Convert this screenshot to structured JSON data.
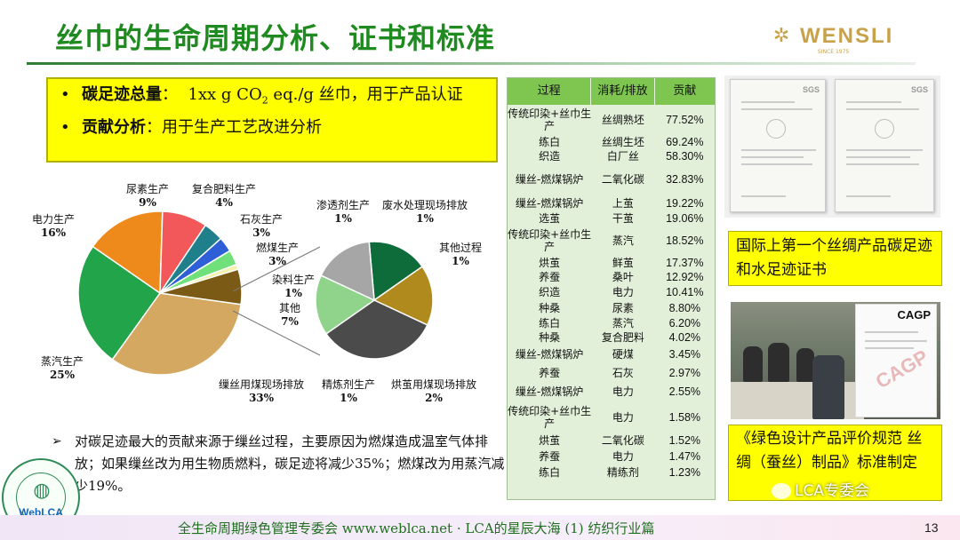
{
  "title": "丝巾的生命周期分析、证书和标准",
  "logo": {
    "name": "WENSLI",
    "sub": "SINCE 1975"
  },
  "summary": [
    {
      "bullet": "•",
      "label": "碳足迹总量",
      "sep": "：",
      "value_pre": "1xx g CO",
      "value_sub": "2",
      "value_post": " eq./g 丝巾，用于产品认证"
    },
    {
      "bullet": "•",
      "label": "贡献分析",
      "sep": "：",
      "value_pre": "用于生产工艺改进分析",
      "value_sub": "",
      "value_post": ""
    }
  ],
  "chart_data": [
    {
      "type": "pie",
      "slices": [
        {
          "name": "缫丝用煤现场排放",
          "value": 33,
          "label": "33%",
          "color": "#d4a860"
        },
        {
          "name": "蒸汽生产",
          "value": 25,
          "label": "25%",
          "color": "#22a54a"
        },
        {
          "name": "电力生产",
          "value": 16,
          "label": "16%",
          "color": "#ee8a1c"
        },
        {
          "name": "尿素生产",
          "value": 9,
          "label": "9%",
          "color": "#f2585a"
        },
        {
          "name": "复合肥料生产",
          "value": 4,
          "label": "4%",
          "color": "#1f7f8a"
        },
        {
          "name": "石灰生产",
          "value": 3,
          "label": "3%",
          "color": "#2f5fd6"
        },
        {
          "name": "燃煤生产",
          "value": 3,
          "label": "3%",
          "color": "#6fe07a"
        },
        {
          "name": "染料生产",
          "value": 1,
          "label": "1%",
          "color": "#f2f2a8"
        },
        {
          "name": "其他",
          "value": 7,
          "label": "7%",
          "color": "#7a5a14"
        }
      ]
    },
    {
      "type": "pie",
      "slices": [
        {
          "name": "废水处理现场排放",
          "value": 1,
          "label": "1%",
          "color": "#0e6b3a"
        },
        {
          "name": "其他过程",
          "value": 1,
          "label": "1%",
          "color": "#b08a1c"
        },
        {
          "name": "烘茧用煤现场排放",
          "value": 2,
          "label": "2%",
          "color": "#4b4b4b"
        },
        {
          "name": "精炼剂生产",
          "value": 1,
          "label": "1%",
          "color": "#8fd48a"
        },
        {
          "name": "渗透剂生产",
          "value": 1,
          "label": "1%",
          "color": "#a6a6a6"
        }
      ]
    }
  ],
  "note": {
    "arrow": "➢",
    "text": "对碳足迹最大的贡献来源于缫丝过程，主要原因为燃煤造成温室气体排放；如果缫丝改为用生物质燃料，碳足迹将减少35%；燃煤改为用蒸汽减少19%。"
  },
  "seal": {
    "text": "WebLCA"
  },
  "table": {
    "headers": [
      "过程",
      "消耗/排放",
      "贡献"
    ],
    "rows": [
      {
        "process": "传统印染+丝巾生产",
        "item": "丝绸熟坯",
        "pct": "77.52%"
      },
      {
        "process": "练白",
        "item": "丝绸生坯",
        "pct": "69.24%"
      },
      {
        "process": "织造",
        "item": "白厂丝",
        "pct": "58.30%"
      },
      {
        "process": "缫丝-燃煤锅炉",
        "item": "二氧化碳",
        "pct": "32.83%"
      },
      {
        "process": "缫丝-燃煤锅炉",
        "item": "上茧",
        "pct": "19.22%"
      },
      {
        "process": "选茧",
        "item": "干茧",
        "pct": "19.06%"
      },
      {
        "process": "传统印染+丝巾生产",
        "item": "蒸汽",
        "pct": "18.52%"
      },
      {
        "process": "烘茧",
        "item": "鲜茧",
        "pct": "17.37%"
      },
      {
        "process": "养蚕",
        "item": "桑叶",
        "pct": "12.92%"
      },
      {
        "process": "织造",
        "item": "电力",
        "pct": "10.41%"
      },
      {
        "process": "种桑",
        "item": "尿素",
        "pct": "8.80%"
      },
      {
        "process": "练白",
        "item": "蒸汽",
        "pct": "6.20%"
      },
      {
        "process": "种桑",
        "item": "复合肥料",
        "pct": "4.02%"
      },
      {
        "process": "缫丝-燃煤锅炉",
        "item": "硬煤",
        "pct": "3.45%"
      },
      {
        "process": "养蚕",
        "item": "石灰",
        "pct": "2.97%"
      },
      {
        "process": "缫丝-燃煤锅炉",
        "item": "电力",
        "pct": "2.55%"
      },
      {
        "process": "传统印染+丝巾生产",
        "item": "电力",
        "pct": "1.58%"
      },
      {
        "process": "烘茧",
        "item": "二氧化碳",
        "pct": "1.52%"
      },
      {
        "process": "养蚕",
        "item": "电力",
        "pct": "1.47%"
      },
      {
        "process": "练白",
        "item": "精练剂",
        "pct": "1.23%"
      }
    ]
  },
  "cert_caption": "国际上第一个丝绸产品碳足迹和水足迹证书",
  "cert_brand": "SGS",
  "photo_doc": {
    "brand": "CAGP",
    "stamp": "CAGP"
  },
  "std_caption": "《绿色设计产品评价规范 丝绸（蚕丝）制品》标准制定",
  "watermark": "LCA专委会",
  "footer": "全生命周期绿色管理专委会 www.weblca.net · LCA的星辰大海 (1) 纺织行业篇",
  "page_number": "13"
}
